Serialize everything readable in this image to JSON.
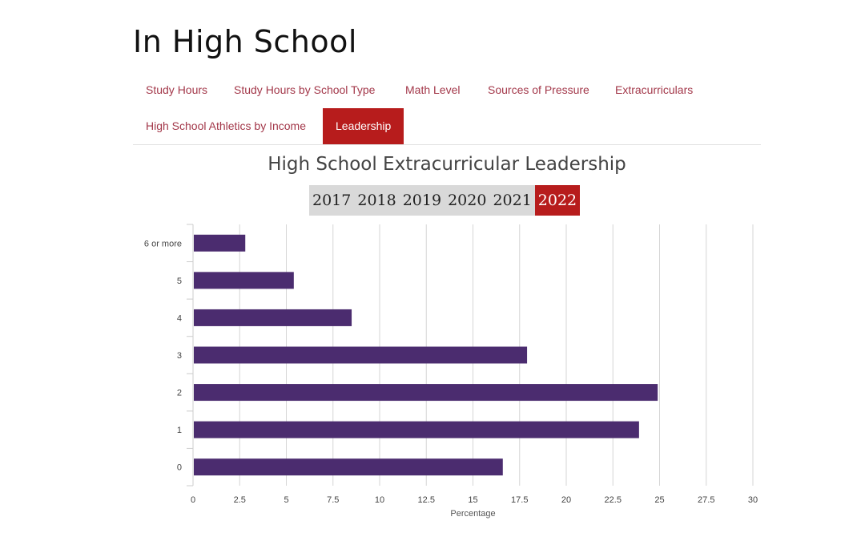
{
  "page": {
    "title": "In High School"
  },
  "tabs": [
    {
      "label": "Study Hours",
      "active": false
    },
    {
      "label": "Study Hours by School Type",
      "active": false
    },
    {
      "label": "Math Level",
      "active": false
    },
    {
      "label": "Sources of Pressure",
      "active": false
    },
    {
      "label": "Extracurriculars",
      "active": false
    },
    {
      "label": "High School Athletics by Income",
      "active": false
    },
    {
      "label": "Leadership",
      "active": true
    }
  ],
  "years": [
    {
      "label": "2017",
      "active": false
    },
    {
      "label": "2018",
      "active": false
    },
    {
      "label": "2019",
      "active": false
    },
    {
      "label": "2020",
      "active": false
    },
    {
      "label": "2021",
      "active": false
    },
    {
      "label": "2022",
      "active": true
    }
  ],
  "colors": {
    "bar": "#4b2c6f",
    "accent": "#b71c1c",
    "tab_text": "#a3384a"
  },
  "chart_data": {
    "type": "bar",
    "orientation": "horizontal",
    "title": "High School Extracurricular Leadership",
    "xlabel": "Percentage",
    "ylabel": "",
    "categories": [
      "6 or more",
      "5",
      "4",
      "3",
      "2",
      "1",
      "0"
    ],
    "values": [
      2.8,
      5.4,
      8.5,
      17.9,
      24.9,
      23.9,
      16.6
    ],
    "xlim": [
      0,
      30
    ],
    "xticks": [
      "0",
      "2.5",
      "5",
      "7.5",
      "10",
      "12.5",
      "15",
      "17.5",
      "20",
      "22.5",
      "25",
      "27.5",
      "30"
    ],
    "grid": true,
    "legend": "none"
  }
}
